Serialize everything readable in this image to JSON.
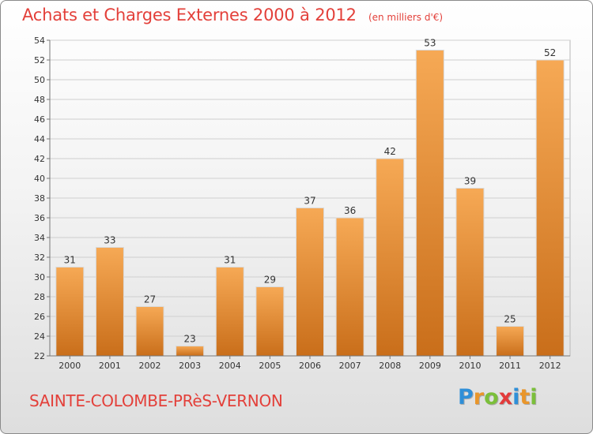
{
  "header": {
    "title": "Achats et Charges Externes 2000 à 2012",
    "unit": "(en milliers d'€)"
  },
  "footer": {
    "place": "SAINTE-COLOMBE-PRèS-VERNON"
  },
  "logo": {
    "text": "Proxiti",
    "letters": [
      "P",
      "r",
      "o",
      "x",
      "i",
      "t",
      "i"
    ],
    "colors": [
      "#2f8fd8",
      "#e9962b",
      "#7bbf3a",
      "#e23a3a",
      "#2f8fd8",
      "#e9962b",
      "#7bbf3a"
    ]
  },
  "colors": {
    "bar_top": "#f6a955",
    "bar_bottom": "#c96e1a",
    "title": "#e3403a"
  },
  "chart_data": {
    "type": "bar",
    "title": "Achats et Charges Externes 2000 à 2012",
    "subtitle": "(en milliers d'€)",
    "categories": [
      "2000",
      "2001",
      "2002",
      "2003",
      "2004",
      "2005",
      "2006",
      "2007",
      "2008",
      "2009",
      "2010",
      "2011",
      "2012"
    ],
    "values": [
      31,
      33,
      27,
      23,
      31,
      29,
      37,
      36,
      42,
      53,
      39,
      25,
      52
    ],
    "ylim": [
      22,
      54
    ],
    "yticks": [
      22,
      24,
      26,
      28,
      30,
      32,
      34,
      36,
      38,
      40,
      42,
      44,
      46,
      48,
      50,
      52,
      54
    ],
    "grid": true,
    "legend": "none"
  }
}
